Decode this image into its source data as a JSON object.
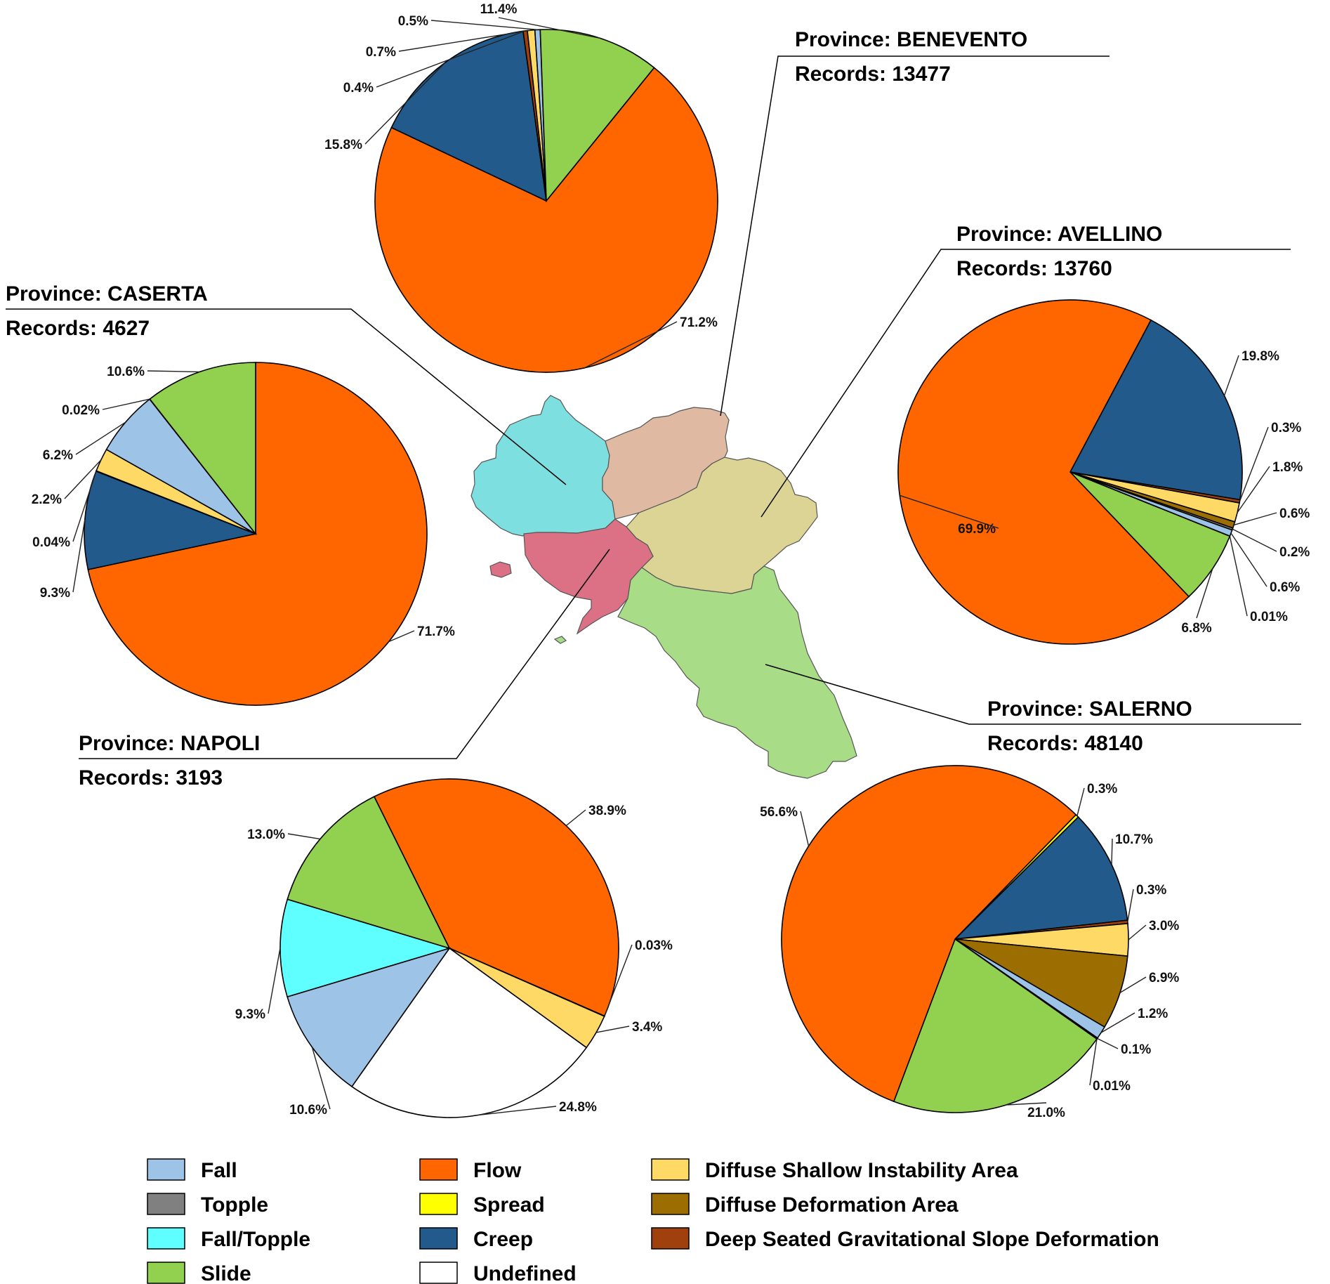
{
  "chart_data": [
    {
      "type": "pie",
      "title": "Province: BENEVENTO",
      "subtitle": "Records: 13477",
      "slices": [
        {
          "category": "Flow",
          "value": 71.2,
          "label": "71.2%"
        },
        {
          "category": "Creep",
          "value": 15.8,
          "label": "15.8%"
        },
        {
          "category": "Deep Seated Gravitational Slope Deformation",
          "value": 0.4,
          "label": "0.4%"
        },
        {
          "category": "Diffuse Shallow Instability Area",
          "value": 0.7,
          "label": "0.7%"
        },
        {
          "category": "Fall",
          "value": 0.5,
          "label": "0.5%"
        },
        {
          "category": "Slide",
          "value": 11.4,
          "label": "11.4%"
        }
      ]
    },
    {
      "type": "pie",
      "title": "Province: CASERTA",
      "subtitle": "Records: 4627",
      "slices": [
        {
          "category": "Flow",
          "value": 71.7,
          "label": "71.7%"
        },
        {
          "category": "Creep",
          "value": 9.3,
          "label": "9.3%"
        },
        {
          "category": "Spread",
          "value": 0.04,
          "label": "0.04%"
        },
        {
          "category": "Diffuse Shallow Instability Area",
          "value": 2.2,
          "label": "2.2%"
        },
        {
          "category": "Fall",
          "value": 6.2,
          "label": "6.2%"
        },
        {
          "category": "Topple",
          "value": 0.02,
          "label": "0.02%"
        },
        {
          "category": "Slide",
          "value": 10.6,
          "label": "10.6%"
        }
      ]
    },
    {
      "type": "pie",
      "title": "Province: AVELLINO",
      "subtitle": "Records: 13760",
      "slices": [
        {
          "category": "Creep",
          "value": 19.8,
          "label": "19.8%"
        },
        {
          "category": "Deep Seated Gravitational Slope Deformation",
          "value": 0.3,
          "label": "0.3%"
        },
        {
          "category": "Diffuse Shallow Instability Area",
          "value": 1.8,
          "label": "1.8%"
        },
        {
          "category": "Diffuse Deformation Area",
          "value": 0.6,
          "label": "0.6%"
        },
        {
          "category": "Topple",
          "value": 0.2,
          "label": "0.2%"
        },
        {
          "category": "Fall",
          "value": 0.6,
          "label": "0.6%"
        },
        {
          "category": "Spread",
          "value": 0.01,
          "label": "0.01%"
        },
        {
          "category": "Slide",
          "value": 6.8,
          "label": "6.8%"
        },
        {
          "category": "Flow",
          "value": 69.9,
          "label": "69.9%"
        }
      ]
    },
    {
      "type": "pie",
      "title": "Province: NAPOLI",
      "subtitle": "Records: 3193",
      "slices": [
        {
          "category": "Flow",
          "value": 38.9,
          "label": "38.9%"
        },
        {
          "category": "Spread",
          "value": 0.03,
          "label": "0.03%"
        },
        {
          "category": "Diffuse Shallow Instability Area",
          "value": 3.4,
          "label": "3.4%"
        },
        {
          "category": "Undefined",
          "value": 24.8,
          "label": "24.8%"
        },
        {
          "category": "Fall",
          "value": 10.6,
          "label": "10.6%"
        },
        {
          "category": "Fall/Topple",
          "value": 9.3,
          "label": "9.3%"
        },
        {
          "category": "Slide",
          "value": 13.0,
          "label": "13.0%"
        }
      ]
    },
    {
      "type": "pie",
      "title": "Province: SALERNO",
      "subtitle": "Records: 48140",
      "slices": [
        {
          "category": "Spread",
          "value": 0.3,
          "label": "0.3%"
        },
        {
          "category": "Creep",
          "value": 10.7,
          "label": "10.7%"
        },
        {
          "category": "Deep Seated Gravitational Slope Deformation",
          "value": 0.3,
          "label": "0.3%"
        },
        {
          "category": "Diffuse Shallow Instability Area",
          "value": 3.0,
          "label": "3.0%"
        },
        {
          "category": "Diffuse Deformation Area",
          "value": 6.9,
          "label": "6.9%"
        },
        {
          "category": "Fall",
          "value": 1.2,
          "label": "1.2%"
        },
        {
          "category": "Topple",
          "value": 0.1,
          "label": "0.1%"
        },
        {
          "category": "Fall/Topple",
          "value": 0.01,
          "label": "0.01%"
        },
        {
          "category": "Slide",
          "value": 21.0,
          "label": "21.0%"
        },
        {
          "category": "Flow",
          "value": 56.6,
          "label": "56.6%"
        }
      ]
    }
  ],
  "legend": {
    "placement": "bottom",
    "items": [
      {
        "label": "Fall",
        "color": "#9dc3e6"
      },
      {
        "label": "Topple",
        "color": "#808080"
      },
      {
        "label": "Fall/Topple",
        "color": "#5fffff"
      },
      {
        "label": "Slide",
        "color": "#92d050"
      },
      {
        "label": "Flow",
        "color": "#ff6600"
      },
      {
        "label": "Spread",
        "color": "#ffff00"
      },
      {
        "label": "Creep",
        "color": "#215a8b"
      },
      {
        "label": "Undefined",
        "color": "#ffffff"
      },
      {
        "label": "Diffuse Shallow Instability Area",
        "color": "#ffd966"
      },
      {
        "label": "Diffuse Deformation Area",
        "color": "#9c6d00"
      },
      {
        "label": "Deep Seated Gravitational Slope Deformation",
        "color": "#a0410d"
      }
    ]
  },
  "map": {
    "provinces": [
      {
        "name": "CASERTA",
        "color": "#7edfe0"
      },
      {
        "name": "BENEVENTO",
        "color": "#dfb9a2"
      },
      {
        "name": "AVELLINO",
        "color": "#dcd494"
      },
      {
        "name": "NAPOLI",
        "color": "#dc7186"
      },
      {
        "name": "SALERNO",
        "color": "#a8dc86"
      }
    ]
  }
}
